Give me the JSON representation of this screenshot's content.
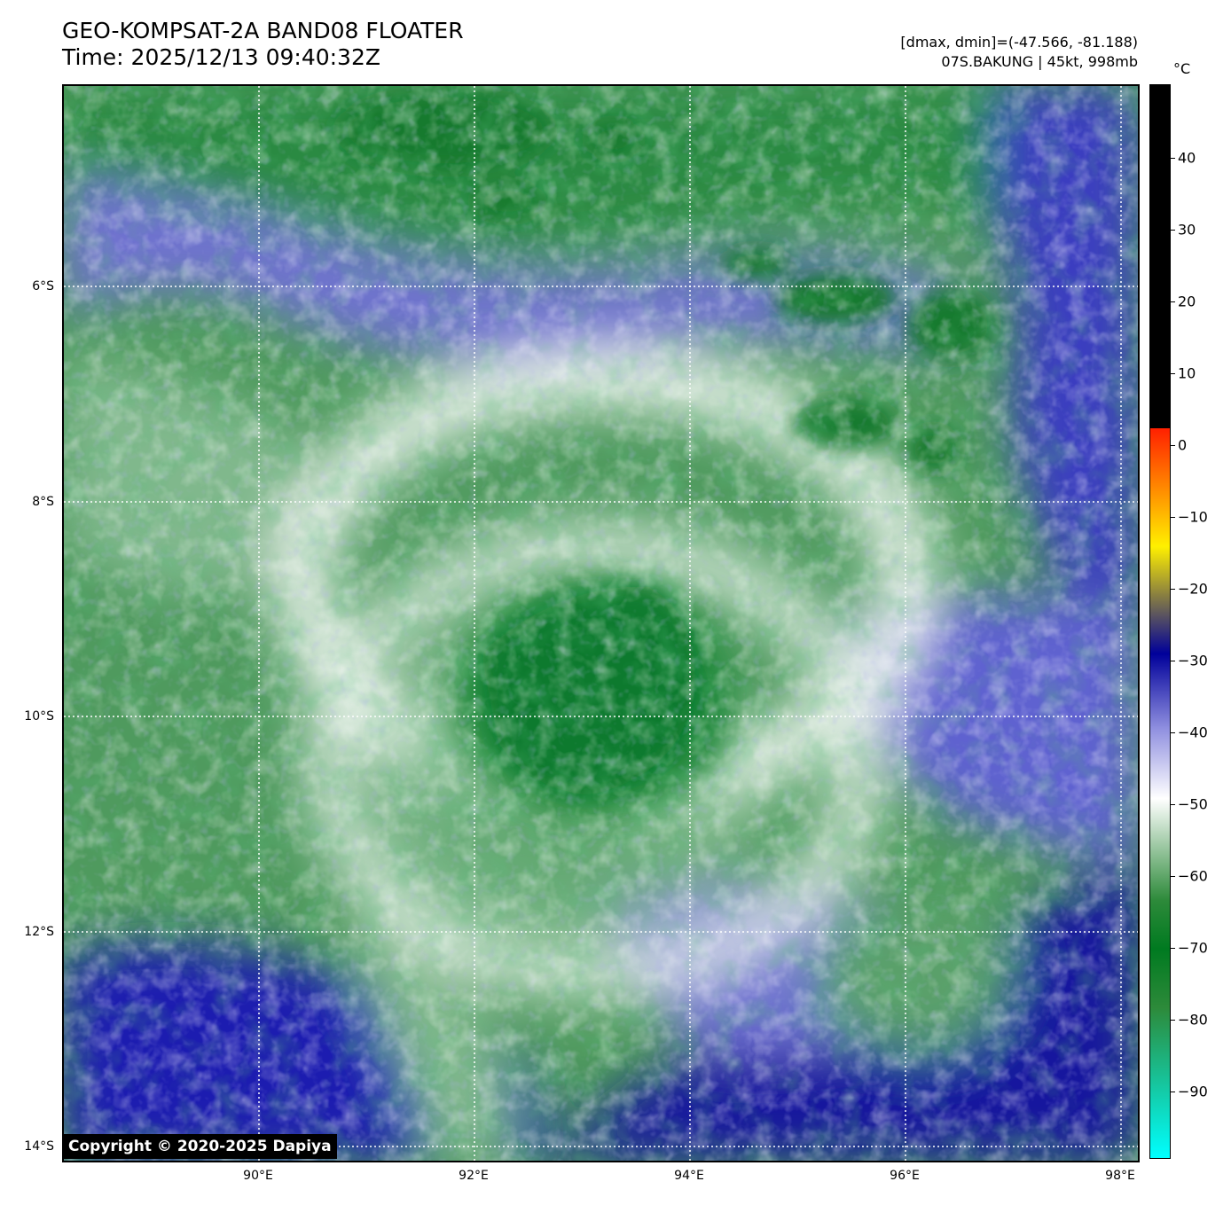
{
  "header": {
    "title_line1": "GEO-KOMPSAT-2A BAND08 FLOATER",
    "title_line2": "Time: 2025/12/13 09:40:32Z",
    "info_line1": "[dmax, dmin]=(-47.566, -81.188)",
    "info_line2": "07S.BAKUNG | 45kt, 998mb"
  },
  "map": {
    "lat_labels": [
      "6°S",
      "8°S",
      "10°S",
      "12°S",
      "14°S"
    ],
    "lon_labels": [
      "90°E",
      "92°E",
      "94°E",
      "96°E",
      "98°E"
    ],
    "copyright": "Copyright © 2020-2025 Dapiya",
    "storm_name": "07S.BAKUNG"
  },
  "colorbar": {
    "unit": "°C",
    "labels": [
      "40",
      "30",
      "20",
      "10",
      "0",
      "−10",
      "−20",
      "−30",
      "−40",
      "−50",
      "−60",
      "−70",
      "−80",
      "−90"
    ],
    "colors": {
      "black": "#000000",
      "red": "#ff2000",
      "yellow": "#fff000",
      "olive": "#8a8040",
      "dark_blue": "#00009a",
      "light_blue": "#9090e0",
      "white": "#ffffff",
      "green": "#2d8a3a",
      "dark_green": "#007a20",
      "cyan": "#00ffff"
    }
  }
}
